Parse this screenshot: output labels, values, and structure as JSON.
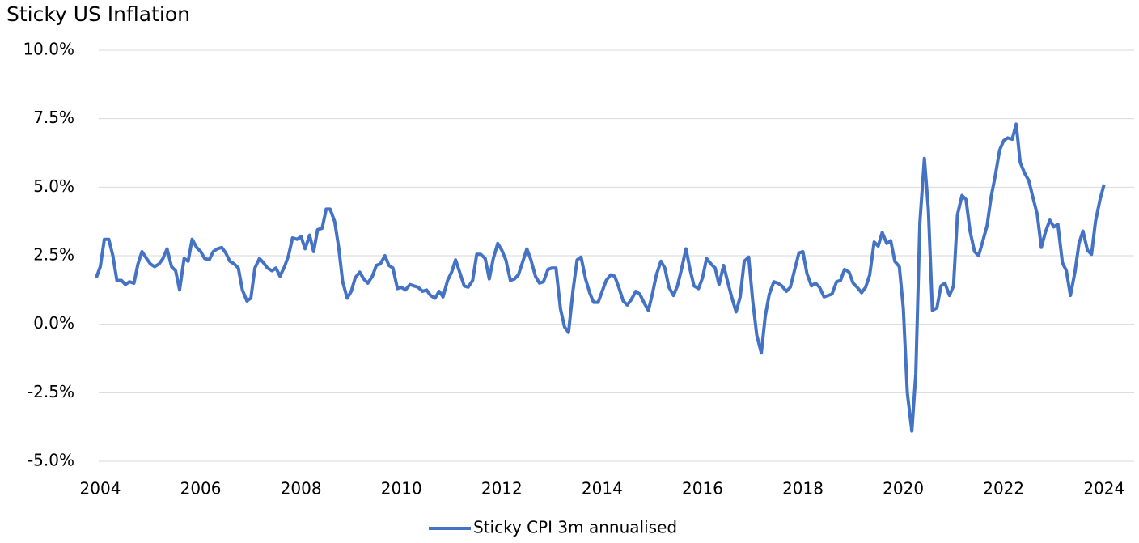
{
  "chart_data": {
    "type": "line",
    "title": "Sticky US Inflation",
    "x": [
      2003.92,
      2004,
      2004.08,
      2004.17,
      2004.25,
      2004.33,
      2004.42,
      2004.5,
      2004.58,
      2004.67,
      2004.75,
      2004.83,
      2004.92,
      2005,
      2005.08,
      2005.17,
      2005.25,
      2005.33,
      2005.42,
      2005.5,
      2005.58,
      2005.67,
      2005.75,
      2005.83,
      2005.92,
      2006,
      2006.08,
      2006.17,
      2006.25,
      2006.33,
      2006.42,
      2006.5,
      2006.58,
      2006.67,
      2006.75,
      2006.83,
      2006.92,
      2007,
      2007.08,
      2007.17,
      2007.25,
      2007.33,
      2007.42,
      2007.5,
      2007.58,
      2007.67,
      2007.75,
      2007.83,
      2007.92,
      2008,
      2008.08,
      2008.17,
      2008.25,
      2008.33,
      2008.42,
      2008.5,
      2008.58,
      2008.67,
      2008.75,
      2008.83,
      2008.92,
      2009,
      2009.08,
      2009.17,
      2009.25,
      2009.33,
      2009.42,
      2009.5,
      2009.58,
      2009.67,
      2009.75,
      2009.83,
      2009.92,
      2010,
      2010.08,
      2010.17,
      2010.25,
      2010.33,
      2010.42,
      2010.5,
      2010.58,
      2010.67,
      2010.75,
      2010.83,
      2010.92,
      2011,
      2011.08,
      2011.17,
      2011.25,
      2011.33,
      2011.42,
      2011.5,
      2011.58,
      2011.67,
      2011.75,
      2011.83,
      2011.92,
      2012,
      2012.08,
      2012.17,
      2012.25,
      2012.33,
      2012.42,
      2012.5,
      2012.58,
      2012.67,
      2012.75,
      2012.83,
      2012.92,
      2013,
      2013.08,
      2013.17,
      2013.25,
      2013.33,
      2013.42,
      2013.5,
      2013.58,
      2013.67,
      2013.75,
      2013.83,
      2013.92,
      2014,
      2014.08,
      2014.17,
      2014.25,
      2014.33,
      2014.42,
      2014.5,
      2014.58,
      2014.67,
      2014.75,
      2014.83,
      2014.92,
      2015,
      2015.08,
      2015.17,
      2015.25,
      2015.33,
      2015.42,
      2015.5,
      2015.58,
      2015.67,
      2015.75,
      2015.83,
      2015.92,
      2016,
      2016.08,
      2016.17,
      2016.25,
      2016.33,
      2016.42,
      2016.5,
      2016.58,
      2016.67,
      2016.75,
      2016.83,
      2016.92,
      2017,
      2017.08,
      2017.17,
      2017.25,
      2017.33,
      2017.42,
      2017.5,
      2017.58,
      2017.67,
      2017.75,
      2017.83,
      2017.92,
      2018,
      2018.08,
      2018.17,
      2018.25,
      2018.33,
      2018.42,
      2018.5,
      2018.58,
      2018.67,
      2018.75,
      2018.83,
      2018.92,
      2019,
      2019.08,
      2019.17,
      2019.25,
      2019.33,
      2019.42,
      2019.5,
      2019.58,
      2019.67,
      2019.75,
      2019.83,
      2019.92,
      2020,
      2020.08,
      2020.17,
      2020.25,
      2020.33,
      2020.42,
      2020.5,
      2020.58,
      2020.67,
      2020.75,
      2020.83,
      2020.92,
      2021,
      2021.08,
      2021.17,
      2021.25,
      2021.33,
      2021.42,
      2021.5,
      2021.58,
      2021.67,
      2021.75,
      2021.83,
      2021.92,
      2022,
      2022.08,
      2022.17,
      2022.25,
      2022.33,
      2022.42,
      2022.5,
      2022.58,
      2022.67,
      2022.75,
      2022.83,
      2022.92,
      2023,
      2023.08,
      2023.17,
      2023.25,
      2023.33,
      2023.42,
      2023.5,
      2023.58,
      2023.67,
      2023.75,
      2023.83,
      2023.92,
      2024
    ],
    "series": [
      {
        "name": "Sticky CPI 3m annualised",
        "color": "#4472c4",
        "values": [
          1.7,
          2.1,
          3.1,
          3.1,
          2.5,
          1.6,
          1.6,
          1.45,
          1.55,
          1.5,
          2.2,
          2.65,
          2.4,
          2.2,
          2.1,
          2.2,
          2.4,
          2.75,
          2.1,
          1.95,
          1.25,
          2.4,
          2.3,
          3.1,
          2.8,
          2.65,
          2.4,
          2.35,
          2.65,
          2.75,
          2.8,
          2.6,
          2.3,
          2.2,
          2.05,
          1.25,
          0.85,
          0.95,
          2.05,
          2.4,
          2.25,
          2.05,
          1.95,
          2.05,
          1.75,
          2.1,
          2.5,
          3.15,
          3.1,
          3.2,
          2.75,
          3.25,
          2.65,
          3.45,
          3.5,
          4.2,
          4.2,
          3.75,
          2.8,
          1.55,
          0.95,
          1.2,
          1.7,
          1.9,
          1.65,
          1.5,
          1.75,
          2.15,
          2.2,
          2.5,
          2.15,
          2.05,
          1.3,
          1.35,
          1.25,
          1.45,
          1.4,
          1.35,
          1.2,
          1.25,
          1.05,
          0.95,
          1.2,
          1.0,
          1.6,
          1.9,
          2.35,
          1.85,
          1.4,
          1.35,
          1.6,
          2.55,
          2.55,
          2.4,
          1.65,
          2.4,
          2.95,
          2.7,
          2.35,
          1.6,
          1.65,
          1.8,
          2.3,
          2.75,
          2.35,
          1.75,
          1.5,
          1.55,
          2.0,
          2.05,
          2.05,
          0.55,
          -0.1,
          -0.3,
          1.25,
          2.35,
          2.45,
          1.65,
          1.15,
          0.8,
          0.8,
          1.2,
          1.6,
          1.8,
          1.75,
          1.35,
          0.85,
          0.7,
          0.9,
          1.2,
          1.1,
          0.8,
          0.5,
          1.1,
          1.8,
          2.3,
          2.05,
          1.35,
          1.05,
          1.4,
          2.0,
          2.75,
          2.0,
          1.4,
          1.3,
          1.7,
          2.4,
          2.2,
          2.05,
          1.45,
          2.15,
          1.55,
          1.0,
          0.45,
          1.0,
          2.3,
          2.45,
          0.85,
          -0.4,
          -1.05,
          0.3,
          1.1,
          1.55,
          1.5,
          1.4,
          1.2,
          1.35,
          1.95,
          2.6,
          2.65,
          1.85,
          1.4,
          1.5,
          1.35,
          1.0,
          1.05,
          1.1,
          1.55,
          1.6,
          2.0,
          1.9,
          1.5,
          1.35,
          1.15,
          1.35,
          1.8,
          3.0,
          2.85,
          3.35,
          2.95,
          3.05,
          2.3,
          2.1,
          0.6,
          -2.5,
          -3.9,
          -1.8,
          3.7,
          6.05,
          4.2,
          0.5,
          0.6,
          1.4,
          1.5,
          1.05,
          1.4,
          4.0,
          4.7,
          4.55,
          3.4,
          2.65,
          2.5,
          3.0,
          3.6,
          4.65,
          5.4,
          6.35,
          6.7,
          6.8,
          6.75,
          7.3,
          5.9,
          5.5,
          5.25,
          4.65,
          4.0,
          2.8,
          3.35,
          3.8,
          3.55,
          3.65,
          2.25,
          1.95,
          1.05,
          1.9,
          2.95,
          3.4,
          2.7,
          2.55,
          3.75,
          4.55,
          5.1
        ]
      }
    ],
    "xlim": [
      2004,
      2024.6
    ],
    "xticks": [
      2004,
      2006,
      2008,
      2010,
      2012,
      2014,
      2016,
      2018,
      2020,
      2022,
      2024
    ],
    "ylim": [
      -5,
      10
    ],
    "yticks": [
      {
        "value": -5,
        "label": "-5.0%"
      },
      {
        "value": -2.5,
        "label": "-2.5%"
      },
      {
        "value": 0,
        "label": "0.0%"
      },
      {
        "value": 2.5,
        "label": "2.5%"
      },
      {
        "value": 5,
        "label": "5.0%"
      },
      {
        "value": 7.5,
        "label": "7.5%"
      },
      {
        "value": 10,
        "label": "10.0%"
      }
    ],
    "grid": true,
    "legend": "bottom"
  }
}
